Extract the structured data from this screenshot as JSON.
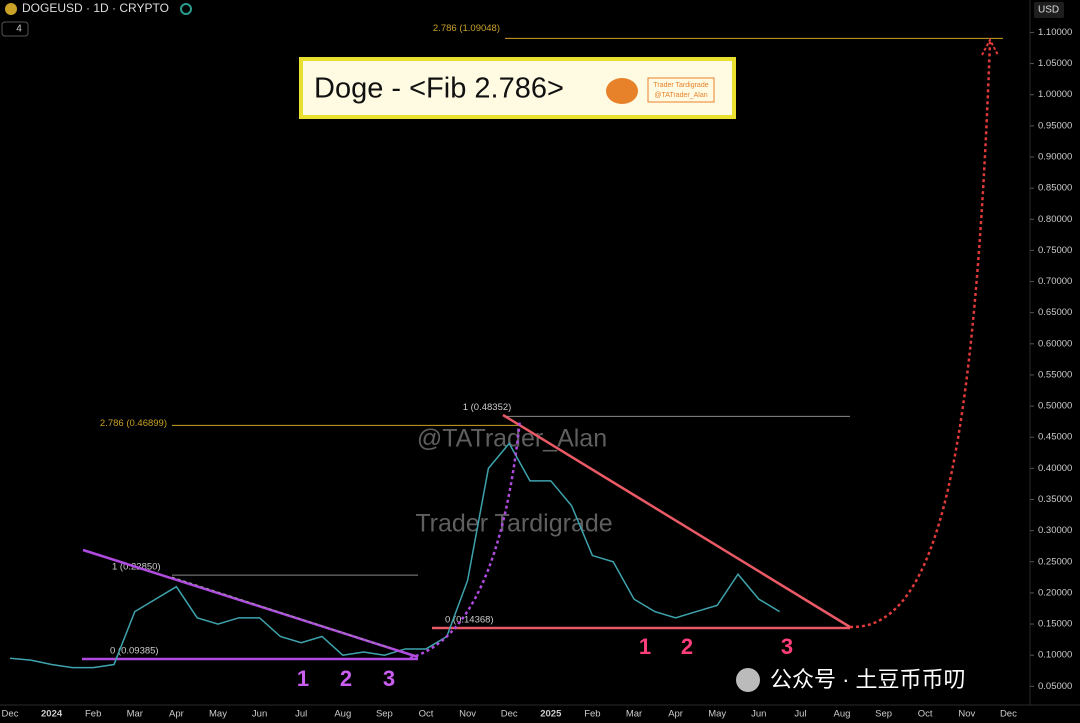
{
  "chart_data": {
    "type": "line",
    "symbol": "DOGEUSD · 1D · CRYPTO",
    "interval_badge": "4",
    "currency": "USD",
    "title": "Doge - <Fib 2.786>",
    "logo_lines": [
      "Trader Tardigrade",
      "@TATrader_Alan"
    ],
    "watermarks": [
      "@TATrader_Alan",
      "Trader Tardigrade"
    ],
    "footer": "公众号 · 土豆币币叨",
    "categories": [
      "Dec",
      null,
      "2024",
      null,
      "Feb",
      null,
      "Mar",
      null,
      "Apr",
      null,
      "May",
      null,
      "Jun",
      null,
      "Jul",
      null,
      "Aug",
      null,
      "Sep",
      null,
      "Oct",
      null,
      "Nov",
      null,
      "Dec",
      null,
      "2025",
      null,
      "Feb",
      null,
      "Mar",
      null,
      "Apr",
      null,
      "May",
      null,
      "Jun",
      null,
      "Jul",
      null,
      "Aug",
      null,
      "Sep",
      null,
      "Oct",
      null,
      "Nov",
      null,
      "Dec",
      null
    ],
    "values": [
      0.095,
      0.092,
      0.085,
      0.08,
      0.08,
      0.085,
      0.17,
      0.19,
      0.21,
      0.16,
      0.15,
      0.16,
      0.16,
      0.13,
      0.12,
      0.13,
      0.1,
      0.105,
      0.1,
      0.11,
      0.11,
      0.13,
      0.22,
      0.4,
      0.44,
      0.38,
      0.38,
      0.34,
      0.26,
      0.25,
      0.19,
      0.17,
      0.16,
      0.17,
      0.18,
      0.23,
      0.19,
      0.17,
      null,
      null,
      null,
      null,
      null,
      null,
      null,
      null,
      null,
      null,
      null,
      null
    ],
    "color": "#3fa3ad",
    "ylim": [
      0.02,
      1.12
    ],
    "yticks": [
      {
        "value": 0.05,
        "label": "0.05000"
      },
      {
        "value": 0.1,
        "label": "0.10000"
      },
      {
        "value": 0.15,
        "label": "0.15000"
      },
      {
        "value": 0.2,
        "label": "0.20000"
      },
      {
        "value": 0.25,
        "label": "0.25000"
      },
      {
        "value": 0.3,
        "label": "0.30000"
      },
      {
        "value": 0.35,
        "label": "0.35000"
      },
      {
        "value": 0.4,
        "label": "0.40000"
      },
      {
        "value": 0.45,
        "label": "0.45000"
      },
      {
        "value": 0.5,
        "label": "0.50000"
      },
      {
        "value": 0.55,
        "label": "0.55000"
      },
      {
        "value": 0.6,
        "label": "0.60000"
      },
      {
        "value": 0.65,
        "label": "0.65000"
      },
      {
        "value": 0.7,
        "label": "0.70000"
      },
      {
        "value": 0.75,
        "label": "0.75000"
      },
      {
        "value": 0.8,
        "label": "0.80000"
      },
      {
        "value": 0.85,
        "label": "0.85000"
      },
      {
        "value": 0.9,
        "label": "0.90000"
      },
      {
        "value": 0.95,
        "label": "0.95000"
      },
      {
        "value": 1.0,
        "label": "1.00000"
      },
      {
        "value": 1.05,
        "label": "1.05000"
      },
      {
        "value": 1.1,
        "label": "1.10000"
      }
    ],
    "fib_levels": [
      {
        "value": 1.09048,
        "label": "2.786 (1.09048)",
        "color": "#c9a227"
      },
      {
        "value": 0.48352,
        "label": "1 (0.48352)",
        "color": "#8a8a8a"
      },
      {
        "value": 0.46899,
        "label": "2.786 (0.46899)",
        "color": "#c9a227"
      },
      {
        "value": 0.2285,
        "label": "1 (0.22850)",
        "color": "#8a8a8a"
      },
      {
        "value": 0.09385,
        "label": "0 (0.09385)",
        "color": "#b04be0"
      },
      {
        "value": 0.14368,
        "label": "0 (0.14368)",
        "color": "#ea5a66"
      }
    ],
    "waves": [
      {
        "labels": [
          "1",
          "2",
          "3"
        ],
        "color": "#c95ef0"
      },
      {
        "labels": [
          "1",
          "2",
          "3"
        ],
        "color": "#ff3f7a"
      }
    ]
  }
}
